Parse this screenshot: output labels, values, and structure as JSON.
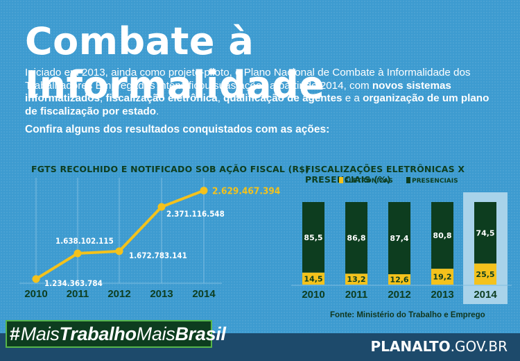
{
  "header": {
    "title": "Combate à Informalidade",
    "intro_part1": "Iniciado em 2013, ainda como projeto-piloto, o Plano Nacional de Combate à Informalidade dos Trabalhadores Empregados intensificou suas ações a partir de 2014, com ",
    "intro_bold1": "novos sistemas informatizados",
    "intro_sep1": ", ",
    "intro_bold2": "fiscalização eletrônica",
    "intro_sep2": ", ",
    "intro_bold3": "qualificação de agentes",
    "intro_sep3": " e a ",
    "intro_bold4": "organização de um plano de fiscalização por estado",
    "intro_end": ".",
    "cta": "Confira alguns dos resultados conquistados com as ações:"
  },
  "colors": {
    "background": "#3d9bd0",
    "line": "#f4c21c",
    "dark_green": "#0d3d1f",
    "highlight_box": "#a9d3ea"
  },
  "chart_data": [
    {
      "type": "line",
      "title": "FGTS RECOLHIDO E NOTIFICADO SOB AÇÃO FISCAL (R$)",
      "x": [
        "2010",
        "2011",
        "2012",
        "2013",
        "2014"
      ],
      "values": [
        1234363784,
        1638102115,
        1672783141,
        2371116548,
        2629467394
      ],
      "labels": [
        "1.234.363.784",
        "1.638.102.115",
        "1.672.783.141",
        "2.371.116.548",
        "2.629.467.394"
      ],
      "grid": true
    },
    {
      "type": "bar",
      "stacked": true,
      "title": "FISCALIZAÇÕES ELETRÔNICAS X PRESENCIAIS (%)",
      "categories": [
        "2010",
        "2011",
        "2012",
        "2013",
        "2014"
      ],
      "series": [
        {
          "name": "ELETRÔNICAS",
          "color": "#f4c21c",
          "values": [
            14.5,
            13.2,
            12.6,
            19.2,
            25.5
          ],
          "labels": [
            "14,5",
            "13,2",
            "12,6",
            "19,2",
            "25,5"
          ]
        },
        {
          "name": "PRESENCIAIS",
          "color": "#0d3d1f",
          "values": [
            85.5,
            86.8,
            87.4,
            80.8,
            74.5
          ],
          "labels": [
            "85,5",
            "86,8",
            "87,4",
            "80,8",
            "74,5"
          ]
        }
      ],
      "ylim": [
        0,
        100
      ],
      "highlight": "2014",
      "legend": "top"
    }
  ],
  "source": "Fonte: Ministério do Trabalho e Emprego",
  "footer": {
    "hashtag_hash": "#",
    "hashtag_part1": "Mais",
    "hashtag_part2": "Trabalho",
    "hashtag_part3": "Mais",
    "hashtag_part4": "Brasil",
    "brand_bold": "PLANALTO",
    "brand_light": ".GOV.BR"
  }
}
